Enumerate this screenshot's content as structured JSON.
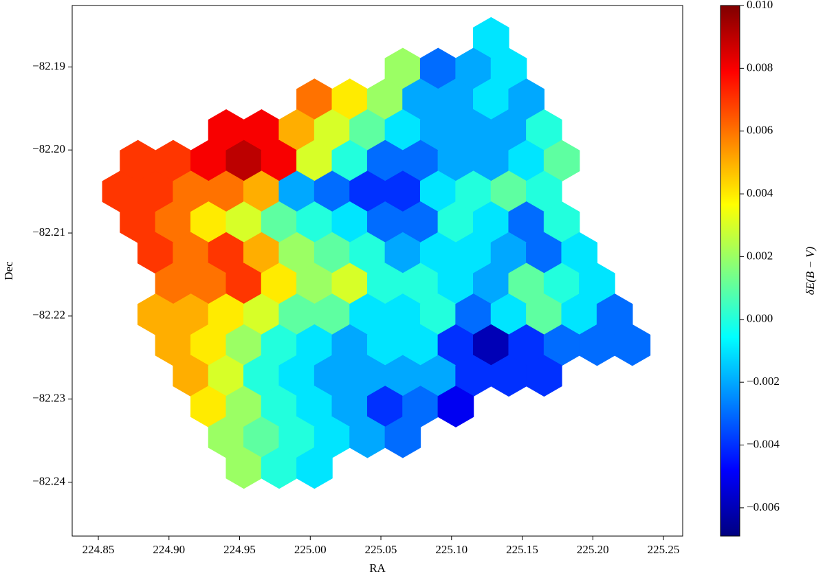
{
  "chart_data": {
    "type": "hexbin",
    "x_label": "RA",
    "y_label": "Dec",
    "colorbar_label": "δE(B − V)",
    "colormap": "jet",
    "xlim": [
      224.8315,
      225.2636
    ],
    "ylim": [
      -82.2465,
      -82.1826
    ],
    "clim": [
      -0.0069,
      0.01
    ],
    "xticks": [
      224.85,
      {
        "value": 224.9,
        "label": "224.90"
      },
      224.95,
      {
        "value": 225.0,
        "label": "225.00"
      },
      225.05,
      {
        "value": 225.1,
        "label": "225.10"
      },
      225.15,
      {
        "value": 225.2,
        "label": "225.20"
      },
      225.25
    ],
    "yticks": [
      {
        "value": -82.19,
        "label": "−82.19"
      },
      {
        "value": -82.2,
        "label": "−82.20"
      },
      {
        "value": -82.21,
        "label": "−82.21"
      },
      {
        "value": -82.22,
        "label": "−82.22"
      },
      {
        "value": -82.23,
        "label": "−82.23"
      },
      {
        "value": -82.24,
        "label": "−82.24"
      }
    ],
    "cticks": [
      {
        "value": -0.006,
        "label": "−0.006"
      },
      {
        "value": -0.004,
        "label": "−0.004"
      },
      {
        "value": -0.002,
        "label": "−0.002"
      },
      {
        "value": 0,
        "label": "0.000"
      },
      {
        "value": 0.002,
        "label": "0.002"
      },
      {
        "value": 0.004,
        "label": "0.004"
      },
      {
        "value": 0.006,
        "label": "0.006"
      },
      {
        "value": 0.008,
        "label": "0.008"
      },
      {
        "value": 0.01,
        "label": "0.010"
      }
    ],
    "x": [
      225.128,
      225.0655,
      225.0905,
      225.1155,
      225.1405,
      225.003,
      225.028,
      225.053,
      225.078,
      225.103,
      225.128,
      225.153,
      224.9405,
      224.9655,
      224.9905,
      225.0155,
      225.0405,
      225.0655,
      225.0905,
      225.1155,
      225.1405,
      225.1655,
      224.878,
      224.903,
      224.928,
      224.953,
      224.978,
      225.003,
      225.028,
      225.053,
      225.078,
      225.103,
      225.128,
      225.153,
      225.178,
      224.8655,
      224.8905,
      224.9155,
      224.9405,
      224.9655,
      224.9905,
      225.0155,
      225.0405,
      225.0655,
      225.0905,
      225.1155,
      225.1405,
      225.1655,
      224.878,
      224.903,
      224.928,
      224.953,
      224.978,
      225.003,
      225.028,
      225.053,
      225.078,
      225.103,
      225.128,
      225.153,
      225.178,
      224.8905,
      224.9155,
      224.9405,
      224.9655,
      224.9905,
      225.0155,
      225.0405,
      225.0655,
      225.0905,
      225.1155,
      225.1405,
      225.1655,
      225.1905,
      224.903,
      224.928,
      224.953,
      224.978,
      225.003,
      225.028,
      225.053,
      225.078,
      225.103,
      225.128,
      225.153,
      225.178,
      225.203,
      224.8905,
      224.9155,
      224.9405,
      224.9655,
      224.9905,
      225.0155,
      225.0405,
      225.0655,
      225.0905,
      225.1155,
      225.1405,
      225.1655,
      225.1905,
      225.2155,
      224.903,
      224.928,
      224.953,
      224.978,
      225.003,
      225.028,
      225.053,
      225.078,
      225.103,
      225.128,
      225.153,
      225.178,
      225.203,
      225.228,
      224.9155,
      224.9405,
      224.9655,
      224.9905,
      225.0155,
      225.0405,
      225.0655,
      225.0905,
      225.1155,
      225.1405,
      225.1655,
      224.928,
      224.953,
      224.978,
      225.003,
      225.028,
      225.053,
      225.078,
      225.103,
      224.9405,
      224.9655,
      224.9905,
      225.0155,
      225.0405,
      225.0655,
      224.953,
      224.978,
      225.003
    ],
    "y": [
      -82.1865,
      -82.1902,
      -82.1902,
      -82.1902,
      -82.1902,
      -82.1939,
      -82.1939,
      -82.1939,
      -82.1939,
      -82.1939,
      -82.1939,
      -82.1939,
      -82.1976,
      -82.1976,
      -82.1976,
      -82.1976,
      -82.1976,
      -82.1976,
      -82.1976,
      -82.1976,
      -82.1976,
      -82.1976,
      -82.2013,
      -82.2013,
      -82.2013,
      -82.2013,
      -82.2013,
      -82.2013,
      -82.2013,
      -82.2013,
      -82.2013,
      -82.2013,
      -82.2013,
      -82.2013,
      -82.2013,
      -82.205,
      -82.205,
      -82.205,
      -82.205,
      -82.205,
      -82.205,
      -82.205,
      -82.205,
      -82.205,
      -82.205,
      -82.205,
      -82.205,
      -82.205,
      -82.2087,
      -82.2087,
      -82.2087,
      -82.2087,
      -82.2087,
      -82.2087,
      -82.2087,
      -82.2087,
      -82.2087,
      -82.2087,
      -82.2087,
      -82.2087,
      -82.2087,
      -82.2124,
      -82.2124,
      -82.2124,
      -82.2124,
      -82.2124,
      -82.2124,
      -82.2124,
      -82.2124,
      -82.2124,
      -82.2124,
      -82.2124,
      -82.2124,
      -82.2124,
      -82.2161,
      -82.2161,
      -82.2161,
      -82.2161,
      -82.2161,
      -82.2161,
      -82.2161,
      -82.2161,
      -82.2161,
      -82.2161,
      -82.2161,
      -82.2161,
      -82.2161,
      -82.2198,
      -82.2198,
      -82.2198,
      -82.2198,
      -82.2198,
      -82.2198,
      -82.2198,
      -82.2198,
      -82.2198,
      -82.2198,
      -82.2198,
      -82.2198,
      -82.2198,
      -82.2198,
      -82.2235,
      -82.2235,
      -82.2235,
      -82.2235,
      -82.2235,
      -82.2235,
      -82.2235,
      -82.2235,
      -82.2235,
      -82.2235,
      -82.2235,
      -82.2235,
      -82.2235,
      -82.2235,
      -82.2272,
      -82.2272,
      -82.2272,
      -82.2272,
      -82.2272,
      -82.2272,
      -82.2272,
      -82.2272,
      -82.2272,
      -82.2272,
      -82.2272,
      -82.2309,
      -82.2309,
      -82.2309,
      -82.2309,
      -82.2309,
      -82.2309,
      -82.2309,
      -82.2309,
      -82.2346,
      -82.2346,
      -82.2346,
      -82.2346,
      -82.2346,
      -82.2346,
      -82.2383,
      -82.2383,
      -82.2383
    ],
    "values": [
      -0.001,
      0.002,
      -0.003,
      -0.002,
      -0.001,
      0.006,
      0.004,
      0.002,
      -0.002,
      -0.002,
      -0.001,
      -0.002,
      0.008,
      0.008,
      0.005,
      0.003,
      0.001,
      -0.001,
      -0.002,
      -0.002,
      -0.002,
      0,
      0.007,
      0.007,
      0.008,
      0.009,
      0.008,
      0.003,
      0,
      -0.003,
      -0.003,
      -0.002,
      -0.002,
      -0.001,
      0.001,
      0.007,
      0.007,
      0.006,
      0.006,
      0.005,
      -0.002,
      -0.003,
      -0.004,
      -0.004,
      -0.001,
      0,
      0.001,
      0,
      0.007,
      0.006,
      0.004,
      0.003,
      0.001,
      0,
      -0.001,
      -0.003,
      -0.003,
      0,
      -0.001,
      -0.003,
      0,
      0.007,
      0.006,
      0.007,
      0.005,
      0.002,
      0.001,
      0,
      -0.002,
      -0.001,
      -0.001,
      -0.002,
      -0.003,
      -0.001,
      0.006,
      0.006,
      0.007,
      0.004,
      0.002,
      0.003,
      0,
      0,
      -0.001,
      -0.002,
      0.001,
      0,
      -0.001,
      0.005,
      0.005,
      0.004,
      0.003,
      0.001,
      0.001,
      -0.001,
      -0.001,
      0,
      -0.003,
      -0.001,
      0.001,
      -0.001,
      -0.003,
      0.005,
      0.004,
      0.002,
      0,
      -0.001,
      -0.002,
      -0.001,
      -0.001,
      -0.004,
      -0.006,
      -0.004,
      -0.003,
      -0.003,
      -0.003,
      0.005,
      0.003,
      0,
      -0.001,
      -0.002,
      -0.002,
      -0.002,
      -0.002,
      -0.004,
      -0.004,
      -0.004,
      0.004,
      0.002,
      0,
      -0.001,
      -0.002,
      -0.004,
      -0.003,
      -0.005,
      0.002,
      0.001,
      0,
      -0.001,
      -0.002,
      -0.003,
      0.002,
      0,
      -0.001
    ]
  }
}
